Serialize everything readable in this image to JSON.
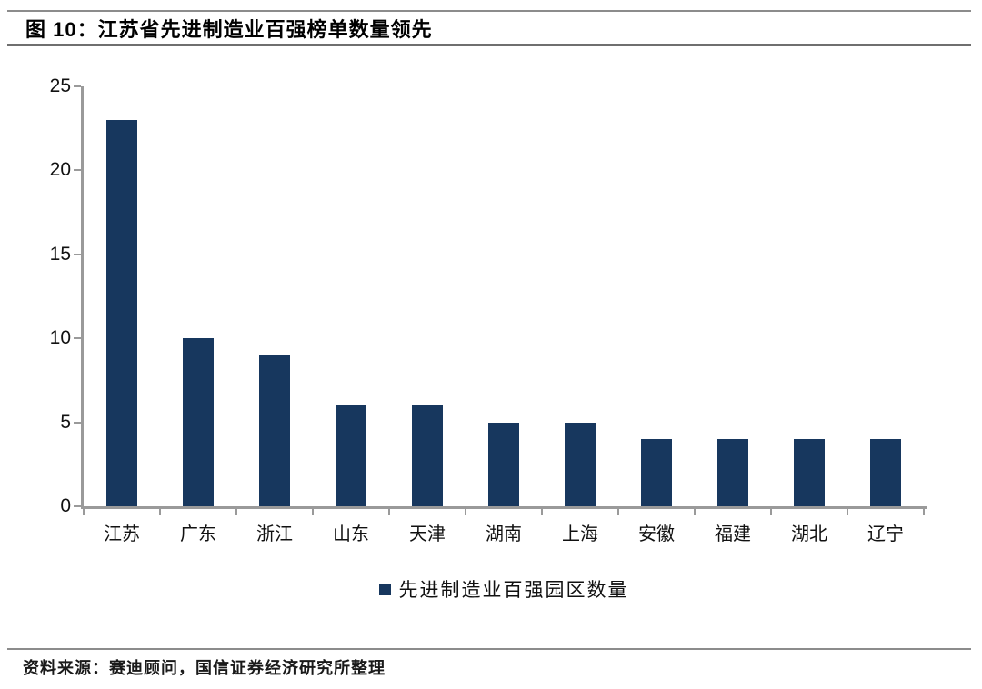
{
  "figure": {
    "title": "图 10：江苏省先进制造业百强榜单数量领先",
    "source": "资料来源：赛迪顾问，国信证券经济研究所整理"
  },
  "colors": {
    "bar": "#17375E",
    "axis": "#9a9a9a",
    "rule": "#8c8c8c",
    "text": "#111111"
  },
  "chart_data": {
    "type": "bar",
    "title": "江苏省先进制造业百强榜单数量领先",
    "categories": [
      "江苏",
      "广东",
      "浙江",
      "山东",
      "天津",
      "湖南",
      "上海",
      "安徽",
      "福建",
      "湖北",
      "辽宁"
    ],
    "values": [
      23,
      10,
      9,
      6,
      6,
      5,
      5,
      4,
      4,
      4,
      4
    ],
    "series_name": "先进制造业百强园区数量",
    "legend": [
      "先进制造业百强园区数量"
    ],
    "legend_position": "bottom",
    "legend_marker": "square",
    "xlabel": "",
    "ylabel": "",
    "ylim": [
      0,
      25
    ],
    "yticks": [
      0,
      5,
      10,
      15,
      20,
      25
    ],
    "grid": false,
    "bar_color": "#17375E"
  }
}
